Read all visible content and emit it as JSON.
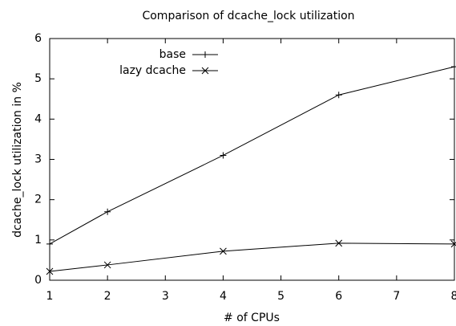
{
  "chart_data": {
    "type": "line",
    "title": "Comparison of dcache_lock utilization",
    "xlabel": "# of CPUs",
    "ylabel": "dcache_lock utilization in %",
    "x": [
      1,
      2,
      4,
      6,
      8
    ],
    "series": [
      {
        "name": "base",
        "color": "#000000",
        "marker": "plus",
        "values": [
          0.9,
          1.7,
          3.1,
          4.6,
          5.3
        ]
      },
      {
        "name": "lazy dcache",
        "color": "#000000",
        "marker": "cross",
        "values": [
          0.22,
          0.38,
          0.72,
          0.92,
          0.9
        ]
      }
    ],
    "xlim": [
      1,
      8
    ],
    "xticks": [
      1,
      2,
      3,
      4,
      5,
      6,
      7,
      8
    ],
    "ylim": [
      0,
      6
    ],
    "yticks": [
      0,
      1,
      2,
      3,
      4,
      5,
      6
    ],
    "grid": false,
    "legend": "top-left"
  }
}
